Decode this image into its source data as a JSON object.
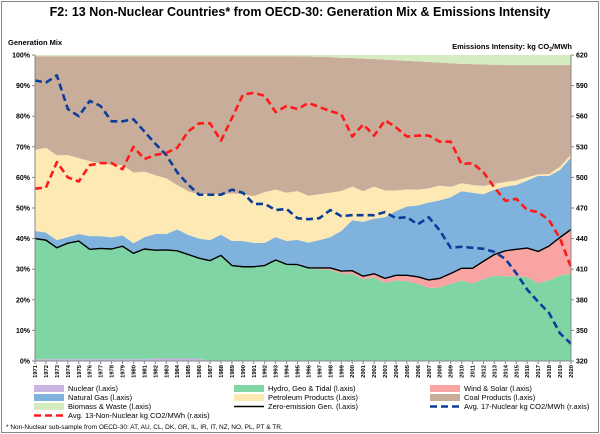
{
  "chart_data": {
    "type": "area",
    "title": "F2: 13 Non-Nuclear Countries* from OECD-30: Generation Mix & Emissions Intensity",
    "ylabel_left": "Generation Mix",
    "ylabel_right": "Emissions Intensity: kg CO",
    "ylabel_right_sub": "2",
    "ylabel_right_tail": "/MWh",
    "ylim_left": [
      0,
      100
    ],
    "ylim_right": [
      320,
      620
    ],
    "yticks_left": [
      "0%",
      "10%",
      "20%",
      "30%",
      "40%",
      "50%",
      "60%",
      "70%",
      "80%",
      "90%",
      "100%"
    ],
    "yticks_right": [
      "320",
      "350",
      "380",
      "410",
      "440",
      "470",
      "500",
      "530",
      "560",
      "590",
      "620"
    ],
    "grid": false,
    "legend_placement": "bottom",
    "x": [
      1971,
      1972,
      1973,
      1974,
      1975,
      1976,
      1977,
      1978,
      1979,
      1980,
      1981,
      1982,
      1983,
      1984,
      1985,
      1986,
      1987,
      1988,
      1989,
      1990,
      1991,
      1992,
      1993,
      1994,
      1995,
      1996,
      1997,
      1998,
      1999,
      2000,
      2001,
      2002,
      2003,
      2004,
      2005,
      2006,
      2007,
      2008,
      2009,
      2010,
      2011,
      2012,
      2013,
      2014,
      2015,
      2016,
      2017,
      2018,
      2019,
      2020
    ],
    "stacked_series": [
      {
        "name": "Nuclear (l.axis)",
        "color": "#c9b3e0",
        "values": [
          0.6,
          0.6,
          0.6,
          0.6,
          0.6,
          0.6,
          0.6,
          0.6,
          0.6,
          0.6,
          0.6,
          0.8,
          0.8,
          0.8,
          0.8,
          0.8,
          0,
          0,
          0,
          0,
          0,
          0,
          0,
          0,
          0,
          0,
          0,
          0,
          0,
          0,
          0,
          0,
          0,
          0,
          0,
          0,
          0,
          0,
          0,
          0,
          0,
          0,
          0,
          0,
          0,
          0,
          0,
          0,
          0,
          0
        ]
      },
      {
        "name": "Hydro, Geo & Tidal (l.axis)",
        "color": "#7fd6a4",
        "values": [
          39.4,
          38.9,
          36.4,
          37.9,
          38.6,
          35.9,
          36.2,
          36.0,
          36.9,
          34.6,
          36.0,
          35.4,
          35.5,
          35.2,
          34.0,
          32.8,
          32.8,
          34.5,
          31.2,
          30.8,
          30.8,
          31.2,
          33.0,
          31.6,
          31.5,
          30.2,
          30.0,
          29.8,
          28.6,
          28.5,
          26.7,
          27.3,
          25.5,
          26.3,
          26.1,
          25.2,
          23.9,
          24.0,
          25.2,
          26.3,
          25.3,
          26.8,
          27.8,
          27.7,
          27.7,
          27.4,
          25.4,
          26.4,
          28.0,
          28.5
        ]
      },
      {
        "name": "Wind & Solar (l.axis)",
        "color": "#f9a3a3",
        "values": [
          0,
          0,
          0,
          0,
          0,
          0,
          0,
          0,
          0,
          0,
          0,
          0,
          0,
          0,
          0,
          0,
          0,
          0,
          0,
          0,
          0,
          0,
          0,
          0,
          0,
          0.2,
          0.4,
          0.6,
          0.8,
          1.0,
          1.0,
          1.2,
          1.5,
          1.7,
          1.9,
          2.3,
          2.6,
          3.0,
          3.4,
          4.0,
          5.0,
          5.8,
          7.0,
          8.3,
          8.8,
          9.5,
          10.4,
          11.2,
          12.4,
          14.5
        ]
      },
      {
        "name": "Natural Gas (l.axis)",
        "color": "#7fb3dd",
        "values": [
          2.5,
          2.5,
          2.5,
          2.0,
          2.3,
          4.3,
          4.0,
          3.8,
          3.5,
          3.3,
          3.9,
          5.3,
          5.2,
          7.0,
          6.4,
          6.4,
          6.7,
          6.8,
          8.0,
          8.4,
          7.8,
          7.4,
          7.5,
          7.6,
          8.1,
          8.3,
          9.1,
          10.1,
          13.1,
          16.5,
          17.8,
          18.0,
          20.0,
          21.0,
          22.5,
          23.3,
          25.3,
          25.5,
          24.9,
          25.2,
          24.7,
          21.9,
          21.2,
          21.0,
          21.0,
          22.1,
          24.7,
          22.9,
          22.1,
          23.5
        ]
      },
      {
        "name": "Petroleum Products (l.axis)",
        "color": "#fde9b3",
        "values": [
          26.5,
          27.7,
          27.7,
          26.8,
          24.8,
          24.5,
          23.7,
          23.8,
          23.0,
          23.1,
          21.4,
          19.2,
          18.2,
          14.5,
          14.3,
          14.4,
          15.1,
          13.1,
          15.6,
          15.3,
          15.3,
          16.6,
          15.5,
          15.8,
          15.9,
          15.3,
          15.0,
          14.5,
          13.1,
          11.0,
          10.0,
          10.5,
          8.7,
          6.7,
          5.6,
          5.2,
          4.6,
          4.8,
          3.4,
          2.6,
          2.5,
          2.7,
          1.9,
          1.5,
          1.5,
          1.0,
          0.5,
          0.6,
          1.0,
          1.0
        ]
      },
      {
        "name": "Coal Products (l.axis)",
        "color": "#c9ad9b",
        "values": [
          30.6,
          29.9,
          32.4,
          32.3,
          33.3,
          34.3,
          35.1,
          35.4,
          35.6,
          38.0,
          37.7,
          38.9,
          39.9,
          42.1,
          44.1,
          45.2,
          45.0,
          45.2,
          44.8,
          45.1,
          45.7,
          44.4,
          43.6,
          44.6,
          44.1,
          45.5,
          44.9,
          44.3,
          43.5,
          42.0,
          43.3,
          41.7,
          42.8,
          42.6,
          42.0,
          41.9,
          41.3,
          40.2,
          40.4,
          39.0,
          39.5,
          39.7,
          38.9,
          38.2,
          37.7,
          36.7,
          35.7,
          35.6,
          33.2,
          29.2
        ]
      },
      {
        "name": "Biomass & Waste (l.axis)",
        "color": "#d4ecc0",
        "values": [
          0.4,
          0.4,
          0.4,
          0.4,
          0.4,
          0.4,
          0.4,
          0.4,
          0.4,
          0.4,
          0.4,
          0.4,
          0.4,
          0.4,
          0.4,
          0.4,
          0.4,
          0.4,
          0.4,
          0.4,
          0.4,
          0.4,
          0.4,
          0.4,
          0.4,
          0.5,
          0.6,
          0.7,
          0.9,
          1.0,
          1.2,
          1.3,
          1.5,
          1.7,
          1.9,
          2.1,
          2.3,
          2.5,
          2.7,
          2.9,
          3.0,
          3.1,
          3.2,
          3.3,
          3.3,
          3.3,
          3.3,
          3.3,
          3.3,
          3.3
        ]
      }
    ],
    "line_series": [
      {
        "name": "Zero-emission Gen. (l.axis)",
        "axis": "left",
        "color": "#000000",
        "style": "solid",
        "values": [
          40,
          39.5,
          37,
          38.5,
          39.2,
          36.5,
          36.8,
          36.6,
          37.5,
          35.2,
          36.6,
          36.2,
          36.3,
          36,
          34.8,
          33.6,
          32.8,
          34.5,
          31.2,
          30.8,
          30.8,
          31.2,
          33,
          31.6,
          31.5,
          30.4,
          30.4,
          30.4,
          29.4,
          29.5,
          27.7,
          28.5,
          27,
          28,
          28,
          27.5,
          26.5,
          27,
          28.6,
          30.3,
          30.3,
          32.6,
          34.8,
          36,
          36.5,
          36.9,
          35.8,
          37.6,
          40.4,
          43
        ]
      },
      {
        "name": "Avg. 17-Nuclear kg CO2/MWh (r.axis)",
        "axis": "right",
        "color": "#0b3d9a",
        "style": "dashed",
        "values": [
          595,
          593,
          600,
          567,
          560,
          575,
          570,
          555,
          555,
          557,
          545,
          533,
          522,
          505,
          493,
          483,
          483,
          483,
          488,
          485,
          474,
          474,
          468,
          469,
          460,
          459,
          460,
          468,
          462,
          463,
          463,
          463,
          466,
          460,
          461,
          454,
          461,
          448,
          431,
          432,
          431,
          430,
          427,
          420,
          406,
          390,
          378,
          367,
          347,
          337
        ]
      },
      {
        "name": "Avg. 13-Non-Nuclear kg CO2/MWh (r.axis)",
        "axis": "right",
        "color": "#ff1a1a",
        "style": "dashed",
        "values": [
          489,
          490,
          515,
          500,
          496,
          512,
          514,
          514,
          508,
          530,
          518,
          522,
          524,
          529,
          545,
          553,
          553,
          536,
          558,
          581,
          583,
          580,
          564,
          570,
          567,
          573,
          569,
          565,
          562,
          540,
          552,
          541,
          556,
          549,
          540,
          541,
          541,
          535,
          535,
          513,
          514,
          505,
          490,
          477,
          479,
          468,
          466,
          458,
          440,
          412
        ]
      }
    ],
    "legend": [
      "Nuclear (l.axis)",
      "Hydro, Geo & Tidal (l.axis)",
      "Wind & Solar (l.axis)",
      "Natural Gas (l.axis)",
      "Petroleum Products (l.axis)",
      "Coal Products (l.axis)",
      "Biomass & Waste (l.axis)",
      "Zero-emission Gen. (l.axis)",
      "Avg. 17-Nuclear kg CO2/MWh (r.axis)",
      "Avg. 13-Non-Nuclear kg CO2/MWh (r.axis)"
    ],
    "footnote": "* Non-Nuclear sub-sample from OECD-30:  AT, AU, CL, DK, GR, IL, IR, IT, NZ, NO, PL, PT & TR."
  }
}
